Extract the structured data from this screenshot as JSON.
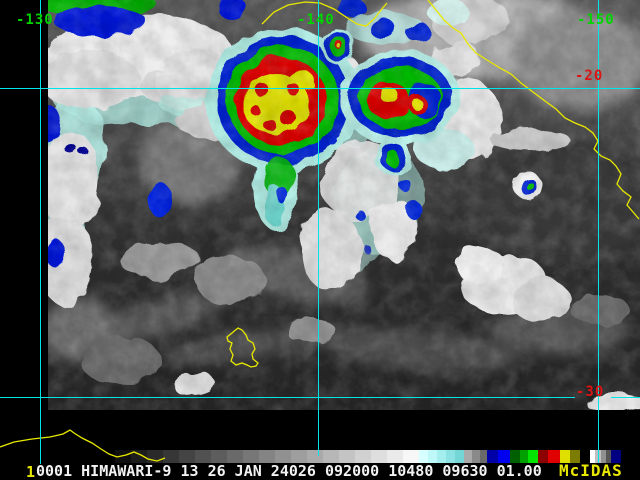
{
  "colors": {
    "background": "#000000",
    "grid_line": "#00e6e6",
    "coastline": "#e8e800",
    "lon_label": "#00d400",
    "lat_label": "#dc1414",
    "info_text": "#f2f2f2",
    "brand_text": "#e8e800",
    "frame_text": "#e8e800"
  },
  "map_labels": {
    "longitude": [
      {
        "text": "-130"
      },
      {
        "text": "-140"
      },
      {
        "text": "-150"
      }
    ],
    "latitude": [
      {
        "text": "-20"
      },
      {
        "text": "-30"
      }
    ]
  },
  "status_bar": {
    "frame_number": "1",
    "info_line": "0001 HIMAWARI-9 13 26 JAN 24026 092000 10480 09630 01.00",
    "brand": "McIDAS"
  },
  "colorbar": {
    "stops": [
      [
        "#000000",
        115
      ],
      [
        "#101010",
        16
      ],
      [
        "#1d1d1d",
        16
      ],
      [
        "#2a2a2a",
        16
      ],
      [
        "#373737",
        16
      ],
      [
        "#444444",
        16
      ],
      [
        "#515151",
        16
      ],
      [
        "#5d5d5d",
        16
      ],
      [
        "#6a6a6a",
        16
      ],
      [
        "#777777",
        16
      ],
      [
        "#848484",
        16
      ],
      [
        "#919191",
        16
      ],
      [
        "#9e9e9e",
        16
      ],
      [
        "#aaaaaa",
        16
      ],
      [
        "#b7b7b7",
        16
      ],
      [
        "#c4c4c4",
        16
      ],
      [
        "#d1d1d1",
        16
      ],
      [
        "#dedede",
        16
      ],
      [
        "#eaeaea",
        16
      ],
      [
        "#f7f7f7",
        16
      ],
      [
        "#d8ffff",
        9
      ],
      [
        "#bef8f8",
        9
      ],
      [
        "#a4eeee",
        9
      ],
      [
        "#8ce2e2",
        9
      ],
      [
        "#74d6d6",
        9
      ],
      [
        "#aaaaaa",
        8
      ],
      [
        "#8a8a8a",
        8
      ],
      [
        "#6a6a6a",
        7
      ],
      [
        "#0000a8",
        11
      ],
      [
        "#0000f0",
        12
      ],
      [
        "#006000",
        10
      ],
      [
        "#00a000",
        8
      ],
      [
        "#00e400",
        10
      ],
      [
        "#8c0000",
        10
      ],
      [
        "#e00000",
        12
      ],
      [
        "#e0e000",
        10
      ],
      [
        "#7c7c00",
        10
      ],
      [
        "#000000",
        10
      ],
      [
        "#ffffff",
        5
      ],
      [
        "#c0c0c0",
        6
      ],
      [
        "#909090",
        5
      ],
      [
        "#565656",
        5
      ],
      [
        "#000080",
        10
      ],
      [
        "#000000",
        19
      ]
    ]
  }
}
